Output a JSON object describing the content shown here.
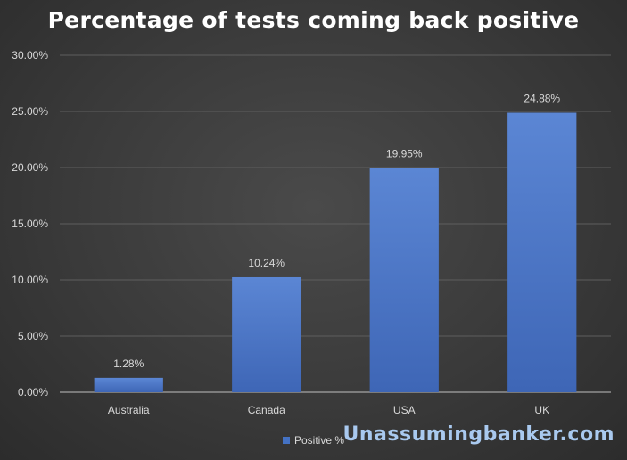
{
  "chart_data": {
    "type": "bar",
    "title": "Percentage of tests coming back positive",
    "categories": [
      "Australia",
      "Canada",
      "USA",
      "UK"
    ],
    "series": [
      {
        "name": "Positive %",
        "values": [
          1.28,
          10.24,
          19.95,
          24.88
        ]
      }
    ],
    "data_labels": [
      "1.28%",
      "10.24%",
      "19.95%",
      "24.88%"
    ],
    "ylim": [
      0,
      30
    ],
    "yticks": [
      0,
      5,
      10,
      15,
      20,
      25,
      30
    ],
    "ytick_labels": [
      "0.00%",
      "5.00%",
      "10.00%",
      "15.00%",
      "20.00%",
      "25.00%",
      "30.00%"
    ],
    "xlabel": "",
    "ylabel": "",
    "grid": true,
    "legend_position": "bottom",
    "bar_color": "#4472c4",
    "background_color": "#3a3a3a"
  },
  "watermark": "Unassumingbanker.com"
}
